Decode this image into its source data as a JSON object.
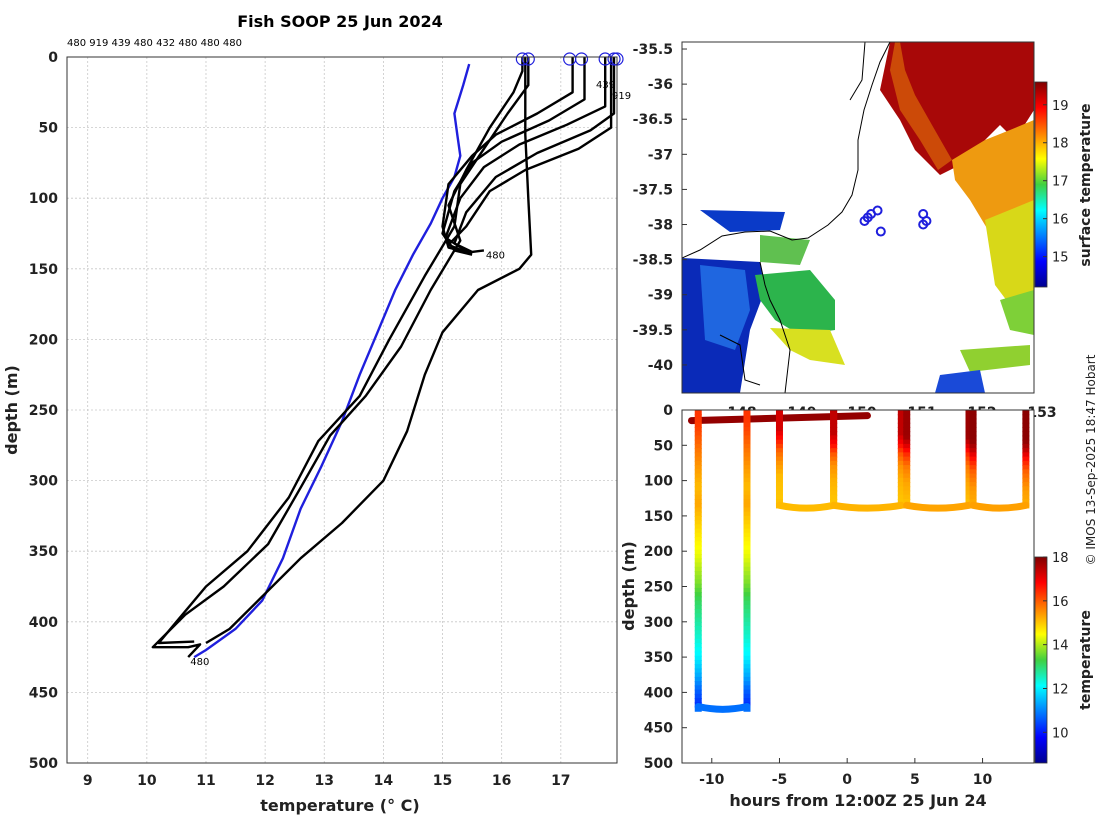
{
  "title": "Fish SOOP 25 Jun 2024",
  "drop_ids_header": "480 919 439 480 432 480 480 480",
  "watermark": "© IMOS 13-Sep-2025 18:47 Hobart",
  "colors": {
    "profile": "#000000",
    "climatology": "#1f1fdd",
    "grid": "#c8c8c8",
    "marker": "#1f1fdd"
  },
  "chart_data": [
    {
      "type": "line",
      "name": "temperature-profiles",
      "xlabel": "temperature (° C)",
      "ylabel": "depth (m)",
      "xlim": [
        8.65,
        17.95
      ],
      "ylim": [
        500,
        0
      ],
      "xticks": [
        9,
        10,
        11,
        12,
        13,
        14,
        15,
        16,
        17
      ],
      "yticks": [
        0,
        50,
        100,
        150,
        200,
        250,
        300,
        350,
        400,
        450,
        500
      ],
      "climatology": {
        "name": "climatology",
        "points": [
          [
            15.45,
            5
          ],
          [
            15.35,
            20
          ],
          [
            15.2,
            40
          ],
          [
            15.25,
            55
          ],
          [
            15.3,
            70
          ],
          [
            15.2,
            85
          ],
          [
            15.0,
            100
          ],
          [
            14.8,
            118
          ],
          [
            14.5,
            140
          ],
          [
            14.2,
            165
          ],
          [
            13.9,
            195
          ],
          [
            13.6,
            225
          ],
          [
            13.3,
            258
          ],
          [
            12.95,
            290
          ],
          [
            12.6,
            320
          ],
          [
            12.3,
            355
          ],
          [
            11.95,
            385
          ],
          [
            11.5,
            405
          ],
          [
            11.0,
            420
          ],
          [
            10.8,
            425
          ]
        ]
      },
      "series": [
        {
          "name": "drop-deep",
          "label": "480",
          "points": [
            [
              16.35,
              0
            ],
            [
              16.35,
              10
            ],
            [
              16.2,
              25
            ],
            [
              15.8,
              50
            ],
            [
              15.4,
              80
            ],
            [
              15.1,
              105
            ],
            [
              15.3,
              130
            ],
            [
              14.8,
              165
            ],
            [
              14.3,
              205
            ],
            [
              13.7,
              240
            ],
            [
              13.1,
              268
            ],
            [
              12.6,
              305
            ],
            [
              12.05,
              345
            ],
            [
              11.3,
              375
            ],
            [
              10.65,
              395
            ],
            [
              10.1,
              418
            ],
            [
              10.7,
              418
            ],
            [
              10.9,
              416
            ],
            [
              10.7,
              425
            ]
          ]
        },
        {
          "name": "drop-deep-2",
          "label": "",
          "points": [
            [
              16.45,
              0
            ],
            [
              16.45,
              20
            ],
            [
              16.1,
              40
            ],
            [
              15.7,
              65
            ],
            [
              15.3,
              90
            ],
            [
              15.2,
              120
            ],
            [
              14.7,
              155
            ],
            [
              14.1,
              200
            ],
            [
              13.6,
              240
            ],
            [
              12.9,
              272
            ],
            [
              12.4,
              312
            ],
            [
              11.7,
              350
            ],
            [
              11.0,
              375
            ],
            [
              10.5,
              400
            ],
            [
              10.2,
              415
            ],
            [
              10.8,
              414
            ]
          ]
        },
        {
          "name": "drop-3",
          "label": "",
          "points": [
            [
              17.2,
              0
            ],
            [
              17.2,
              25
            ],
            [
              16.6,
              40
            ],
            [
              15.9,
              55
            ],
            [
              15.5,
              70
            ],
            [
              15.1,
              90
            ],
            [
              15.0,
              120
            ],
            [
              15.1,
              135
            ],
            [
              15.4,
              138
            ]
          ]
        },
        {
          "name": "drop-4",
          "label": "",
          "points": [
            [
              17.4,
              0
            ],
            [
              17.4,
              30
            ],
            [
              16.8,
              45
            ],
            [
              16.0,
              60
            ],
            [
              15.5,
              75
            ],
            [
              15.2,
              95
            ],
            [
              15.0,
              125
            ],
            [
              15.2,
              137
            ],
            [
              15.5,
              140
            ]
          ]
        },
        {
          "name": "drop-5",
          "label": "",
          "points": [
            [
              17.75,
              0
            ],
            [
              17.75,
              35
            ],
            [
              17.1,
              48
            ],
            [
              16.3,
              62
            ],
            [
              15.7,
              78
            ],
            [
              15.3,
              100
            ],
            [
              15.05,
              128
            ],
            [
              15.35,
              136
            ],
            [
              15.5,
              139
            ]
          ]
        },
        {
          "name": "drop-6",
          "label": "480",
          "points": [
            [
              17.9,
              0
            ],
            [
              17.9,
              40
            ],
            [
              17.5,
              52
            ],
            [
              16.6,
              68
            ],
            [
              15.9,
              85
            ],
            [
              15.4,
              110
            ],
            [
              15.2,
              132
            ],
            [
              15.5,
              138
            ],
            [
              15.7,
              137
            ]
          ]
        },
        {
          "name": "drop-7",
          "label": "",
          "points": [
            [
              17.85,
              0
            ],
            [
              17.85,
              50
            ],
            [
              17.3,
              65
            ],
            [
              16.4,
              80
            ],
            [
              15.8,
              95
            ],
            [
              15.4,
              120
            ],
            [
              15.1,
              133
            ],
            [
              15.45,
              139
            ]
          ]
        },
        {
          "name": "drop-8",
          "label": "",
          "points": [
            [
              16.4,
              0
            ],
            [
              16.4,
              55
            ],
            [
              16.45,
              100
            ],
            [
              16.5,
              140
            ],
            [
              16.3,
              150
            ],
            [
              15.6,
              165
            ],
            [
              15.0,
              195
            ],
            [
              14.7,
              225
            ],
            [
              14.4,
              265
            ],
            [
              14.0,
              300
            ],
            [
              13.3,
              330
            ],
            [
              12.6,
              355
            ],
            [
              12.0,
              380
            ],
            [
              11.4,
              405
            ],
            [
              11.0,
              415
            ]
          ]
        }
      ],
      "surface_markers": [
        16.35,
        16.45,
        17.15,
        17.35,
        17.75,
        17.9,
        17.95
      ],
      "annotations": [
        "439",
        "919"
      ]
    },
    {
      "type": "heatmap",
      "name": "sst-map",
      "ylim": [
        -40.4,
        -35.4
      ],
      "xlim": [
        147.0,
        152.4
      ],
      "yticks": [
        -35.5,
        -36,
        -36.5,
        -37,
        -37.5,
        -38,
        -38.5,
        -39,
        -39.5,
        -40
      ],
      "yticklabels": [
        "-35.5",
        "-36",
        "-36.5",
        "-37",
        "-37.5",
        "-38",
        "-38.5",
        "-39",
        "-39.5",
        "-40"
      ],
      "xticklabels": [
        "148",
        "149",
        "150",
        "151",
        "152",
        "153"
      ],
      "colorbar": {
        "label": "surface temperature",
        "range": [
          14.2,
          19.6
        ],
        "ticks": [
          15,
          16,
          17,
          18,
          19
        ]
      },
      "drop_locations": [
        [
          149.8,
          -37.95
        ],
        [
          149.85,
          -37.9
        ],
        [
          150.0,
          -37.8
        ],
        [
          149.9,
          -37.85
        ],
        [
          150.05,
          -38.1
        ],
        [
          150.7,
          -37.85
        ],
        [
          150.75,
          -37.95
        ],
        [
          150.7,
          -38.0
        ]
      ]
    },
    {
      "type": "scatter",
      "name": "depth-time",
      "xlabel": "hours from 12:00Z 25 Jun 24",
      "ylabel": "depth (m)",
      "xlim": [
        -12.2,
        13.8
      ],
      "ylim": [
        500,
        0
      ],
      "xticks": [
        -10,
        -5,
        0,
        5,
        10
      ],
      "yticks": [
        0,
        50,
        100,
        150,
        200,
        250,
        300,
        350,
        400,
        450,
        500
      ],
      "colorbar": {
        "label": "temperature",
        "range": [
          8.6,
          18.0
        ],
        "ticks": [
          10,
          12,
          14,
          16,
          18
        ]
      }
    }
  ]
}
